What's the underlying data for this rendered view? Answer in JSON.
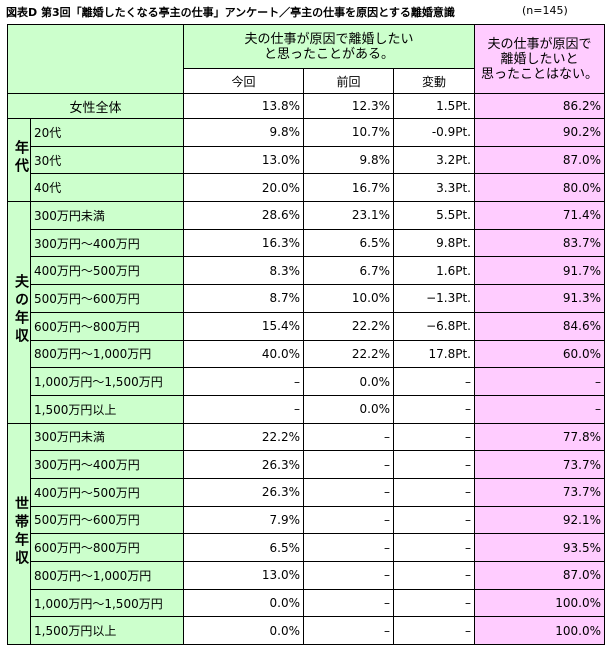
{
  "title": "図表D 第3回「離婚したくなる亭主の仕事」アンケート／亭主の仕事を原因とする離婚意識",
  "n": "(n=145)",
  "header": {
    "group1": [
      "夫の仕事が原因で離婚したい",
      "と思ったことがある。"
    ],
    "columns": [
      "今回",
      "前回",
      "変動"
    ],
    "group2": [
      "夫の仕事が原因で",
      "離婚したいと",
      "思ったことはない。"
    ]
  },
  "total": {
    "label": "女性全体",
    "cells": [
      "13.8%",
      "12.3%",
      "1.5Pt.",
      "86.2%"
    ]
  },
  "sections": [
    {
      "label": "年代",
      "rows": [
        {
          "label": "20代",
          "cells": [
            "9.8%",
            "10.7%",
            "-0.9Pt.",
            "90.2%"
          ]
        },
        {
          "label": "30代",
          "cells": [
            "13.0%",
            "9.8%",
            "3.2Pt.",
            "87.0%"
          ]
        },
        {
          "label": "40代",
          "cells": [
            "20.0%",
            "16.7%",
            "3.3Pt.",
            "80.0%"
          ]
        }
      ]
    },
    {
      "label": "夫の年収",
      "rows": [
        {
          "label": "300万円未満",
          "cells": [
            "28.6%",
            "23.1%",
            "5.5Pt.",
            "71.4%"
          ]
        },
        {
          "label": "300万円～400万円",
          "cells": [
            "16.3%",
            "6.5%",
            "9.8Pt.",
            "83.7%"
          ]
        },
        {
          "label": "400万円～500万円",
          "cells": [
            "8.3%",
            "6.7%",
            "1.6Pt.",
            "91.7%"
          ]
        },
        {
          "label": "500万円～600万円",
          "cells": [
            "8.7%",
            "10.0%",
            "−1.3Pt.",
            "91.3%"
          ]
        },
        {
          "label": "600万円～800万円",
          "cells": [
            "15.4%",
            "22.2%",
            "−6.8Pt.",
            "84.6%"
          ]
        },
        {
          "label": "800万円～1,000万円",
          "cells": [
            "40.0%",
            "22.2%",
            "17.8Pt.",
            "60.0%"
          ]
        },
        {
          "label": "1,000万円～1,500万円",
          "cells": [
            "–",
            "0.0%",
            "–",
            "–"
          ]
        },
        {
          "label": "1,500万円以上",
          "cells": [
            "–",
            "0.0%",
            "–",
            "–"
          ]
        }
      ]
    },
    {
      "label": "世帯年収",
      "rows": [
        {
          "label": "300万円未満",
          "cells": [
            "22.2%",
            "–",
            "–",
            "77.8%"
          ]
        },
        {
          "label": "300万円～400万円",
          "cells": [
            "26.3%",
            "–",
            "–",
            "73.7%"
          ]
        },
        {
          "label": "400万円～500万円",
          "cells": [
            "26.3%",
            "–",
            "–",
            "73.7%"
          ]
        },
        {
          "label": "500万円～600万円",
          "cells": [
            "7.9%",
            "–",
            "–",
            "92.1%"
          ]
        },
        {
          "label": "600万円～800万円",
          "cells": [
            "6.5%",
            "–",
            "–",
            "93.5%"
          ]
        },
        {
          "label": "800万円～1,000万円",
          "cells": [
            "13.0%",
            "–",
            "–",
            "87.0%"
          ]
        },
        {
          "label": "1,000万円～1,500万円",
          "cells": [
            "0.0%",
            "–",
            "–",
            "100.0%"
          ]
        },
        {
          "label": "1,500万円以上",
          "cells": [
            "0.0%",
            "–",
            "–",
            "100.0%"
          ]
        }
      ]
    }
  ]
}
